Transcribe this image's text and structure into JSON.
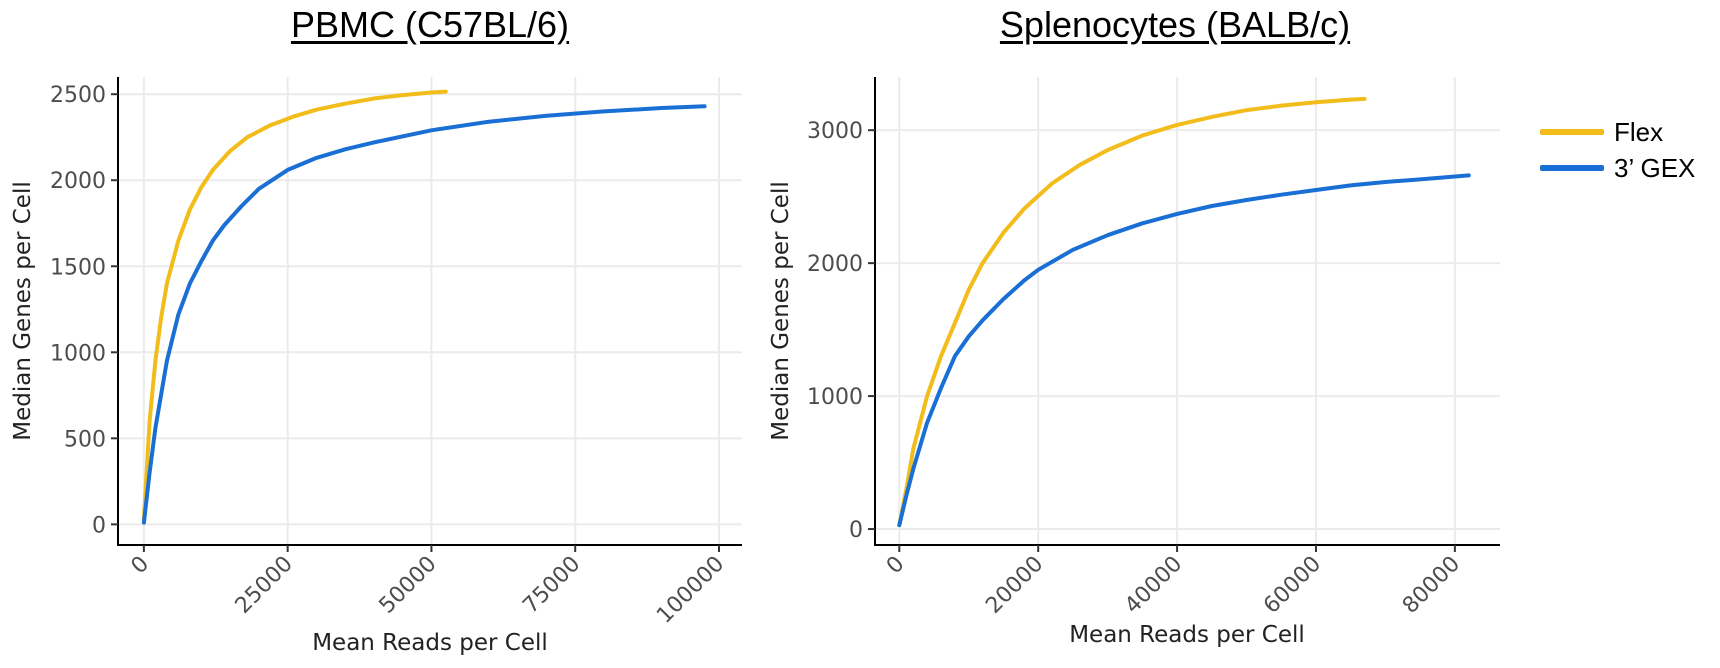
{
  "colors": {
    "flex": "#F2BC1B",
    "gex": "#1A6FD4",
    "grid": "#EBEBEB",
    "axis": "#000000",
    "tick_text": "#4D4D4D"
  },
  "legend": [
    {
      "label": "Flex",
      "color": "#F2BC1B"
    },
    {
      "label": "3’ GEX",
      "color": "#1A6FD4"
    }
  ],
  "chart_data": [
    {
      "type": "line",
      "title": "PBMC (C57BL/6)",
      "xlabel": "Mean Reads per Cell",
      "ylabel": "Median Genes per Cell",
      "xlim": [
        -4500,
        104000
      ],
      "ylim": [
        -120,
        2600
      ],
      "xticks": [
        0,
        25000,
        50000,
        75000,
        100000
      ],
      "yticks": [
        0,
        500,
        1000,
        1500,
        2000,
        2500
      ],
      "grid": true,
      "series": [
        {
          "name": "Flex",
          "x": [
            0,
            1000,
            2000,
            3000,
            4000,
            6000,
            8000,
            10000,
            12000,
            15000,
            18000,
            22000,
            26000,
            30000,
            35000,
            40000,
            45000,
            50000,
            52500
          ],
          "y": [
            30,
            600,
            950,
            1200,
            1400,
            1650,
            1830,
            1960,
            2060,
            2170,
            2250,
            2320,
            2370,
            2410,
            2445,
            2475,
            2495,
            2510,
            2515
          ]
        },
        {
          "name": "3’ GEX",
          "x": [
            0,
            1000,
            2000,
            4000,
            6000,
            8000,
            10000,
            12000,
            14000,
            17000,
            20000,
            25000,
            30000,
            35000,
            40000,
            50000,
            60000,
            70000,
            80000,
            90000,
            97500
          ],
          "y": [
            10,
            300,
            560,
            950,
            1220,
            1400,
            1530,
            1650,
            1740,
            1850,
            1950,
            2060,
            2130,
            2180,
            2220,
            2290,
            2340,
            2375,
            2400,
            2420,
            2430
          ]
        }
      ]
    },
    {
      "type": "line",
      "title": "Splenocytes (BALB/c)",
      "xlabel": "Mean Reads per Cell",
      "ylabel": "Median Genes per Cell",
      "xlim": [
        -3500,
        86500
      ],
      "ylim": [
        -120,
        3400
      ],
      "xticks": [
        0,
        20000,
        40000,
        60000,
        80000
      ],
      "yticks": [
        0,
        1000,
        2000,
        3000
      ],
      "grid": true,
      "series": [
        {
          "name": "Flex",
          "x": [
            0,
            1000,
            2000,
            4000,
            6000,
            8000,
            10000,
            12000,
            15000,
            18000,
            22000,
            26000,
            30000,
            35000,
            40000,
            45000,
            50000,
            55000,
            60000,
            65000,
            67000
          ],
          "y": [
            30,
            300,
            600,
            1000,
            1300,
            1550,
            1800,
            2000,
            2230,
            2410,
            2600,
            2740,
            2850,
            2960,
            3040,
            3100,
            3150,
            3185,
            3210,
            3230,
            3235
          ]
        },
        {
          "name": "3’ GEX",
          "x": [
            0,
            1000,
            2000,
            4000,
            6000,
            8000,
            10000,
            12000,
            15000,
            18000,
            20000,
            25000,
            30000,
            35000,
            40000,
            45000,
            50000,
            55000,
            60000,
            65000,
            70000,
            75000,
            82000
          ],
          "y": [
            30,
            250,
            450,
            800,
            1060,
            1300,
            1450,
            1570,
            1730,
            1870,
            1950,
            2100,
            2210,
            2300,
            2370,
            2430,
            2475,
            2515,
            2550,
            2585,
            2610,
            2630,
            2660
          ]
        }
      ]
    }
  ]
}
